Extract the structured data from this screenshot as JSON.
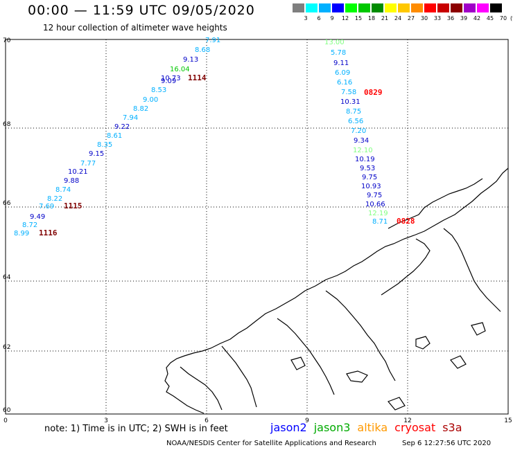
{
  "header": {
    "title": "00:00 — 11:59 UTC 09/05/2020",
    "subtitle": "12 hour collection of altimeter wave heights"
  },
  "colorbar": {
    "unit_label": "(ft)",
    "items": [
      {
        "label": "3",
        "color": "#7f7f7f"
      },
      {
        "label": "6",
        "color": "#00ffff"
      },
      {
        "label": "9",
        "color": "#00b0ff"
      },
      {
        "label": "12",
        "color": "#0000ff"
      },
      {
        "label": "15",
        "color": "#00ff00"
      },
      {
        "label": "18",
        "color": "#00c800"
      },
      {
        "label": "21",
        "color": "#008c00"
      },
      {
        "label": "24",
        "color": "#ffff00"
      },
      {
        "label": "27",
        "color": "#ffc800"
      },
      {
        "label": "30",
        "color": "#ff8c00"
      },
      {
        "label": "33",
        "color": "#ff0000"
      },
      {
        "label": "36",
        "color": "#c80000"
      },
      {
        "label": "39",
        "color": "#8c0000"
      },
      {
        "label": "42",
        "color": "#a000c8"
      },
      {
        "label": "45",
        "color": "#ff00ff"
      },
      {
        "label": "70",
        "color": "#000000"
      }
    ]
  },
  "axes": {
    "lon_ticks": [
      "0",
      "3",
      "6",
      "9",
      "12",
      "15"
    ],
    "lat_ticks": [
      "70",
      "68",
      "66",
      "64",
      "62",
      "60"
    ]
  },
  "passes": [
    {
      "label": "1114",
      "color": "#800000"
    },
    {
      "label": "1115",
      "color": "#800000"
    },
    {
      "label": "1116",
      "color": "#800000"
    },
    {
      "label": "0829",
      "color": "#ff0000"
    },
    {
      "label": "0828",
      "color": "#ff0000"
    }
  ],
  "track_west": [
    {
      "value": "7.91",
      "color": "#00b0ff"
    },
    {
      "value": "8.68",
      "color": "#00b0ff"
    },
    {
      "value": "9.13",
      "color": "#0000c8"
    },
    {
      "value": "16.04",
      "color": "#00c800"
    },
    {
      "value": "10.73",
      "color": "#0000c8"
    },
    {
      "value": "9.09",
      "color": "#0000c8"
    },
    {
      "value": "8.53",
      "color": "#00b0ff"
    },
    {
      "value": "9.00",
      "color": "#00b0ff"
    },
    {
      "value": "8.82",
      "color": "#00b0ff"
    },
    {
      "value": "7.94",
      "color": "#00b0ff"
    },
    {
      "value": "9.22",
      "color": "#0000c8"
    },
    {
      "value": "8.61",
      "color": "#00b0ff"
    },
    {
      "value": "8.35",
      "color": "#00b0ff"
    },
    {
      "value": "9.15",
      "color": "#0000c8"
    },
    {
      "value": "7.77",
      "color": "#00b0ff"
    },
    {
      "value": "10.21",
      "color": "#0000c8"
    },
    {
      "value": "9.88",
      "color": "#0000c8"
    },
    {
      "value": "8.74",
      "color": "#00b0ff"
    },
    {
      "value": "8.22",
      "color": "#00b0ff"
    },
    {
      "value": "7.69",
      "color": "#00b0ff"
    },
    {
      "value": "9.49",
      "color": "#0000c8"
    },
    {
      "value": "8.72",
      "color": "#00b0ff"
    },
    {
      "value": "8.99",
      "color": "#00b0ff"
    }
  ],
  "track_east": [
    {
      "value": "13.00",
      "color": "#80ff80"
    },
    {
      "value": "5.78",
      "color": "#00b0ff"
    },
    {
      "value": "9.11",
      "color": "#0000c8"
    },
    {
      "value": "6.09",
      "color": "#00b0ff"
    },
    {
      "value": "6.16",
      "color": "#00b0ff"
    },
    {
      "value": "7.58",
      "color": "#00b0ff"
    },
    {
      "value": "10.31",
      "color": "#0000c8"
    },
    {
      "value": "8.75",
      "color": "#00b0ff"
    },
    {
      "value": "6.56",
      "color": "#00b0ff"
    },
    {
      "value": "7.20",
      "color": "#00b0ff"
    },
    {
      "value": "9.34",
      "color": "#0000c8"
    },
    {
      "value": "12.10",
      "color": "#80ff80"
    },
    {
      "value": "10.19",
      "color": "#0000c8"
    },
    {
      "value": "9.53",
      "color": "#0000c8"
    },
    {
      "value": "9.75",
      "color": "#0000c8"
    },
    {
      "value": "10.93",
      "color": "#0000c8"
    },
    {
      "value": "9.75",
      "color": "#0000c8"
    },
    {
      "value": "10.66",
      "color": "#0000c8"
    },
    {
      "value": "12.19",
      "color": "#80ff80"
    },
    {
      "value": "8.71",
      "color": "#00b0ff"
    }
  ],
  "footer": {
    "note": "note: 1) Time is in UTC; 2) SWH is in feet",
    "legend": [
      {
        "label": "jason2",
        "color": "#0000ff"
      },
      {
        "label": "jason3",
        "color": "#00aa00"
      },
      {
        "label": "altika",
        "color": "#ff9900"
      },
      {
        "label": "cryosat",
        "color": "#ff0000"
      },
      {
        "label": "s3a",
        "color": "#aa0000"
      }
    ],
    "credit": "NOAA/NESDIS Center for Satellite Applications and Research",
    "timestamp": "Sep  6 12:27:56 UTC 2020"
  }
}
